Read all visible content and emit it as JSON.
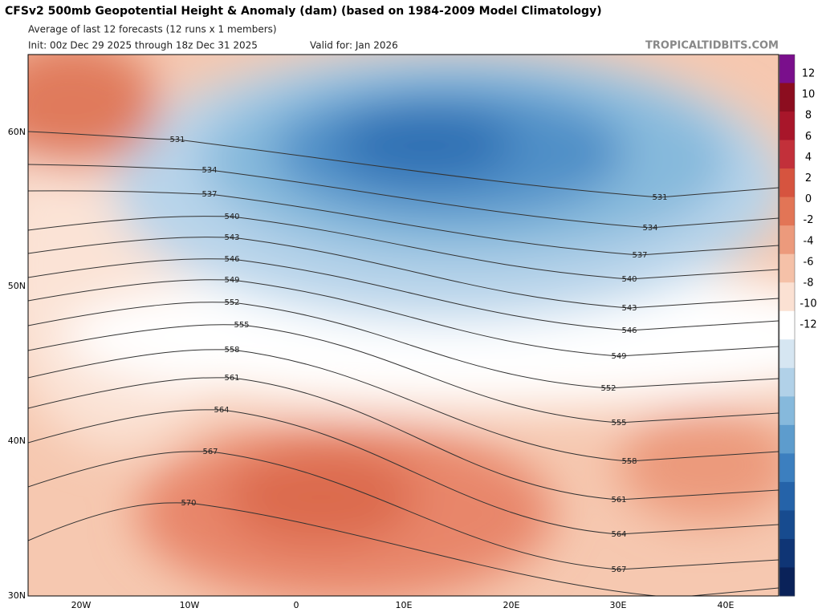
{
  "header": {
    "title": "CFSv2 500mb Geopotential Height & Anomaly (dam) (based on 1984-2009 Model Climatology)",
    "subtitle": "Average of last 12 forecasts (12 runs x 1 members)",
    "init": "Init: 00z Dec 29 2025 through 18z Dec 31 2025",
    "valid": "Valid for: Jan 2026",
    "brand": "TROPICALTIDBITS.COM"
  },
  "map": {
    "lat_labels": [
      "60N",
      "50N",
      "40N",
      "30N"
    ],
    "lon_labels": [
      "20W",
      "10W",
      "0",
      "10E",
      "20E",
      "30E",
      "40E"
    ],
    "contour_labels": [
      "531",
      "534",
      "537",
      "540",
      "543",
      "546",
      "549",
      "552",
      "555",
      "558",
      "561",
      "564",
      "567",
      "570"
    ]
  },
  "colorbar": {
    "ticks": [
      "12",
      "10",
      "8",
      "6",
      "4",
      "2",
      "0",
      "-2",
      "-4",
      "-6",
      "-8",
      "-10",
      "-12"
    ],
    "colors": [
      "#7a0f8c",
      "#8c0d1f",
      "#a8162a",
      "#c2303a",
      "#d6543f",
      "#e27556",
      "#ec9a7c",
      "#f5c1a8",
      "#fbe1d3",
      "#ffffff",
      "#d6e6f2",
      "#b1d1e8",
      "#86b9dc",
      "#5d9ccd",
      "#3c7fbf",
      "#2563a9",
      "#174b8f",
      "#0f3575",
      "#0a2259"
    ]
  }
}
